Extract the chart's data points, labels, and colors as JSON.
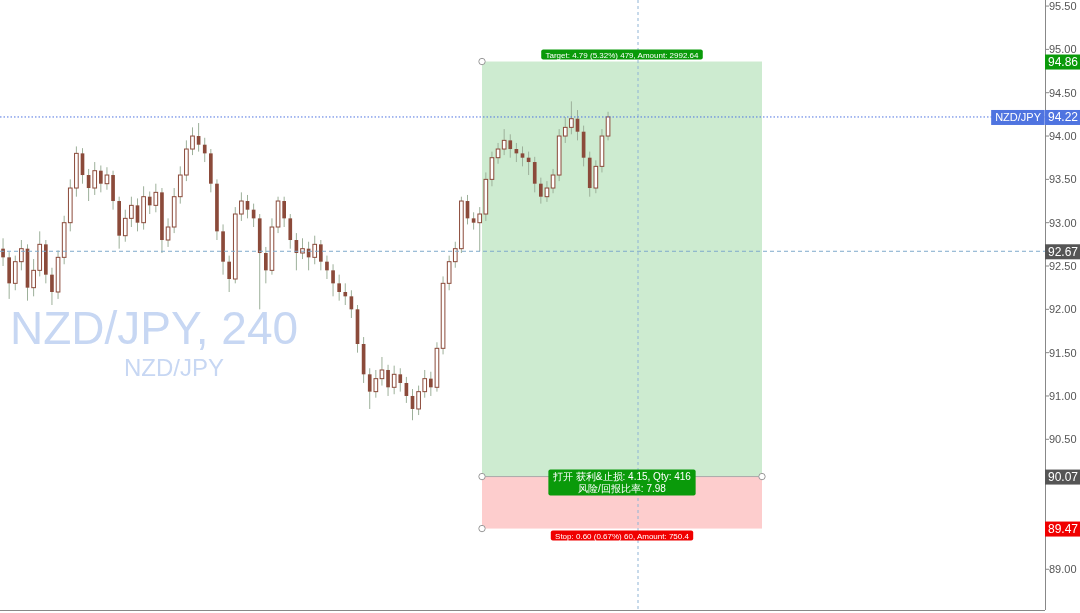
{
  "chart_data": {
    "type": "candlestick",
    "color": "#8b4a3a",
    "categories": [
      null,
      null,
      null,
      null,
      null,
      null,
      null,
      null,
      null,
      null,
      null,
      null,
      null,
      null,
      null,
      null,
      null,
      null,
      null,
      null,
      null,
      null,
      null,
      null,
      null,
      null,
      null,
      null,
      null,
      null,
      null,
      null,
      null,
      null,
      null,
      null,
      null,
      null,
      null,
      null,
      null,
      null,
      null,
      null,
      null,
      null,
      null,
      null,
      null,
      null,
      null,
      null,
      null,
      null,
      null,
      null,
      null,
      null,
      null,
      null,
      null,
      null,
      null,
      null,
      null,
      null,
      null,
      null,
      null,
      null,
      null,
      null,
      null,
      null,
      null,
      null,
      null,
      null,
      null,
      null,
      null,
      null,
      null,
      null,
      null,
      null,
      null,
      null,
      null,
      null,
      null,
      null,
      null,
      null,
      null,
      null,
      null,
      null,
      null,
      null,
      null,
      null,
      null,
      null,
      null,
      null,
      null,
      null,
      null,
      null,
      null,
      null,
      null,
      null,
      null,
      null,
      null,
      null,
      null,
      null,
      null,
      null,
      null,
      null,
      null,
      null,
      null,
      null,
      null,
      null,
      null,
      null,
      null,
      null,
      null,
      null,
      null,
      null,
      null,
      null,
      null,
      null,
      null,
      null,
      null,
      null,
      null,
      null,
      null,
      null,
      null,
      null,
      null,
      null,
      null,
      null,
      null,
      null,
      null,
      null,
      null,
      null,
      null,
      null,
      null,
      null,
      null,
      null,
      null,
      null,
      null
    ],
    "ohlc": [
      [
        92.7,
        92.82,
        92.5,
        92.6
      ],
      [
        92.6,
        92.66,
        92.12,
        92.3
      ],
      [
        92.3,
        92.62,
        92.22,
        92.55
      ],
      [
        92.55,
        92.8,
        92.45,
        92.7
      ],
      [
        92.7,
        92.75,
        92.1,
        92.25
      ],
      [
        92.25,
        92.58,
        92.15,
        92.45
      ],
      [
        92.45,
        92.9,
        92.38,
        92.75
      ],
      [
        92.75,
        92.8,
        92.3,
        92.4
      ],
      [
        92.4,
        92.48,
        92.05,
        92.2
      ],
      [
        92.2,
        92.68,
        92.12,
        92.6
      ],
      [
        92.6,
        93.08,
        92.52,
        93.0
      ],
      [
        93.0,
        93.5,
        92.9,
        93.4
      ],
      [
        93.4,
        93.88,
        93.3,
        93.8
      ],
      [
        93.8,
        93.86,
        93.45,
        93.55
      ],
      [
        93.55,
        93.62,
        93.25,
        93.4
      ],
      [
        93.4,
        93.7,
        93.32,
        93.6
      ],
      [
        93.6,
        93.66,
        93.35,
        93.45
      ],
      [
        93.45,
        93.64,
        93.38,
        93.55
      ],
      [
        93.55,
        93.6,
        93.15,
        93.25
      ],
      [
        93.25,
        93.3,
        92.7,
        92.85
      ],
      [
        92.85,
        93.15,
        92.78,
        93.05
      ],
      [
        93.05,
        93.3,
        92.95,
        93.2
      ],
      [
        93.2,
        93.28,
        92.9,
        93.0
      ],
      [
        93.0,
        93.42,
        92.92,
        93.3
      ],
      [
        93.3,
        93.36,
        93.1,
        93.2
      ],
      [
        93.2,
        93.45,
        93.12,
        93.35
      ],
      [
        93.35,
        93.4,
        92.65,
        92.8
      ],
      [
        92.8,
        93.05,
        92.72,
        92.95
      ],
      [
        92.95,
        93.4,
        92.88,
        93.3
      ],
      [
        93.3,
        93.65,
        93.22,
        93.55
      ],
      [
        93.55,
        93.95,
        93.48,
        93.85
      ],
      [
        93.85,
        94.1,
        93.78,
        94.0
      ],
      [
        94.0,
        94.15,
        93.82,
        93.9
      ],
      [
        93.9,
        93.98,
        93.7,
        93.8
      ],
      [
        93.8,
        93.85,
        93.35,
        93.45
      ],
      [
        93.45,
        93.5,
        92.8,
        92.9
      ],
      [
        92.9,
        92.98,
        92.4,
        92.55
      ],
      [
        92.55,
        92.62,
        92.2,
        92.35
      ],
      [
        92.35,
        93.18,
        92.3,
        93.1
      ],
      [
        93.1,
        93.35,
        93.02,
        93.25
      ],
      [
        93.25,
        93.32,
        93.05,
        93.15
      ],
      [
        93.15,
        93.22,
        92.95,
        93.05
      ],
      [
        93.05,
        93.1,
        92.0,
        92.65
      ],
      [
        92.65,
        92.72,
        92.3,
        92.45
      ],
      [
        92.45,
        93.05,
        92.4,
        92.95
      ],
      [
        92.95,
        93.3,
        92.88,
        93.25
      ],
      [
        93.25,
        93.3,
        92.95,
        93.05
      ],
      [
        93.05,
        93.1,
        92.7,
        92.8
      ],
      [
        92.8,
        92.88,
        92.45,
        92.65
      ],
      [
        92.65,
        92.82,
        92.58,
        92.7
      ],
      [
        92.7,
        92.78,
        92.45,
        92.6
      ],
      [
        92.6,
        92.85,
        92.52,
        92.75
      ],
      [
        92.75,
        92.8,
        92.45,
        92.55
      ],
      [
        92.55,
        92.62,
        92.35,
        92.45
      ],
      [
        92.45,
        92.52,
        92.15,
        92.3
      ],
      [
        92.3,
        92.4,
        92.1,
        92.2
      ],
      [
        92.2,
        92.3,
        92.05,
        92.15
      ],
      [
        92.15,
        92.22,
        91.9,
        92.0
      ],
      [
        92.0,
        92.05,
        91.5,
        91.6
      ],
      [
        91.6,
        91.68,
        91.15,
        91.25
      ],
      [
        91.25,
        91.32,
        90.85,
        91.05
      ],
      [
        91.05,
        91.3,
        90.98,
        91.2
      ],
      [
        91.2,
        91.45,
        91.12,
        91.3
      ],
      [
        91.3,
        91.36,
        91.0,
        91.1
      ],
      [
        91.1,
        91.35,
        91.02,
        91.25
      ],
      [
        91.25,
        91.32,
        91.05,
        91.15
      ],
      [
        91.15,
        91.22,
        90.92,
        91.0
      ],
      [
        91.0,
        91.08,
        90.72,
        90.85
      ],
      [
        90.85,
        91.12,
        90.78,
        91.05
      ],
      [
        91.05,
        91.3,
        90.98,
        91.2
      ],
      [
        91.2,
        91.28,
        91.0,
        91.1
      ],
      [
        91.1,
        91.62,
        91.05,
        91.55
      ],
      [
        91.55,
        92.38,
        91.48,
        92.3
      ],
      [
        92.3,
        92.62,
        92.22,
        92.55
      ],
      [
        92.55,
        92.78,
        92.48,
        92.7
      ],
      [
        92.7,
        93.3,
        92.65,
        93.25
      ],
      [
        93.25,
        93.32,
        92.98,
        93.05
      ],
      [
        93.05,
        93.12,
        92.92,
        93.0
      ],
      [
        93.0,
        93.18,
        92.67,
        93.1
      ],
      [
        93.1,
        93.58,
        93.02,
        93.5
      ],
      [
        93.5,
        93.82,
        93.42,
        93.75
      ],
      [
        93.75,
        93.92,
        93.68,
        93.85
      ],
      [
        93.85,
        94.08,
        93.78,
        93.95
      ],
      [
        93.95,
        94.02,
        93.75,
        93.85
      ],
      [
        93.85,
        93.92,
        93.7,
        93.8
      ],
      [
        93.8,
        93.88,
        93.65,
        93.75
      ],
      [
        93.75,
        93.82,
        93.55,
        93.7
      ],
      [
        93.7,
        93.76,
        93.35,
        93.45
      ],
      [
        93.45,
        93.52,
        93.22,
        93.3
      ],
      [
        93.3,
        93.48,
        93.24,
        93.4
      ],
      [
        93.4,
        93.62,
        93.34,
        93.55
      ],
      [
        93.55,
        94.08,
        93.48,
        94.0
      ],
      [
        94.0,
        94.22,
        93.92,
        94.1
      ],
      [
        94.1,
        94.4,
        94.02,
        94.2
      ],
      [
        94.2,
        94.3,
        93.95,
        94.05
      ],
      [
        94.05,
        94.12,
        93.65,
        93.75
      ],
      [
        93.75,
        93.82,
        93.3,
        93.4
      ],
      [
        93.4,
        93.72,
        93.34,
        93.65
      ],
      [
        93.65,
        94.08,
        93.58,
        94.0
      ],
      [
        94.0,
        94.28,
        93.95,
        94.22
      ],
      null,
      null,
      null,
      null,
      null,
      null,
      null,
      null,
      null,
      null,
      null,
      null,
      null,
      null,
      null,
      null,
      null,
      null,
      null,
      null,
      null,
      null,
      null,
      null,
      null,
      null,
      null,
      null,
      null,
      null,
      null,
      null,
      null,
      null,
      null,
      null,
      null,
      null,
      null,
      null,
      null,
      null,
      null,
      null,
      null,
      null,
      null,
      null,
      null,
      null,
      null,
      null,
      null,
      null,
      null,
      null,
      null,
      null,
      null,
      null,
      null,
      null,
      null,
      null,
      null,
      null,
      null,
      null,
      null,
      null,
      null
    ],
    "ylim": [
      88.53,
      95.57
    ],
    "yticks": [
      {
        "value": 89.0,
        "label": "89.00"
      },
      {
        "value": 89.5,
        "label": null
      },
      {
        "value": 90.0,
        "label": null
      },
      {
        "value": 90.5,
        "label": "90.50"
      },
      {
        "value": 91.0,
        "label": "91.00"
      },
      {
        "value": 91.5,
        "label": "91.50"
      },
      {
        "value": 92.0,
        "label": "92.00"
      },
      {
        "value": 92.5,
        "label": "92.50"
      },
      {
        "value": 93.0,
        "label": "93.00"
      },
      {
        "value": 93.5,
        "label": "93.50"
      },
      {
        "value": 94.0,
        "label": "94.00"
      },
      {
        "value": 94.5,
        "label": "94.50"
      },
      {
        "value": 95.0,
        "label": "95.00"
      },
      {
        "value": 95.5,
        "label": "95.50"
      }
    ],
    "tick_labels": "y",
    "grid": false,
    "ref_lines": [
      {
        "axis": "y",
        "value": 94.22,
        "label": "NZD/JPY",
        "color": "#4f74e0",
        "line_style": "dotted"
      },
      {
        "axis": "y",
        "value": 92.67,
        "color": "#7fa9cc",
        "line_style": "dashed"
      }
    ],
    "bands": [
      {
        "axis": "y",
        "from": 90.07,
        "to": 94.86,
        "label": "Target: 4.79 (5.32%) 479, Amount: 2992.64",
        "color": "#cdebd0"
      },
      {
        "axis": "y",
        "from": 89.47,
        "to": 90.07,
        "label": "Stop: 0.60 (0.67%) 60, Amount: 750.4",
        "color": "#fdcdcd"
      }
    ],
    "annotations": [
      "NZD/JPY, 240",
      "NZD/JPY",
      "打开 获利&止损: 4.15, Qty: 416",
      "风险/回报比率: 7.98",
      {
        "text": "94.86",
        "y": 94.86
      },
      {
        "text": "94.22",
        "y": 94.22
      },
      {
        "text": "92.67",
        "y": 92.67
      },
      {
        "text": "90.07",
        "y": 90.07
      },
      {
        "text": "89.47",
        "y": 89.47
      }
    ]
  }
}
